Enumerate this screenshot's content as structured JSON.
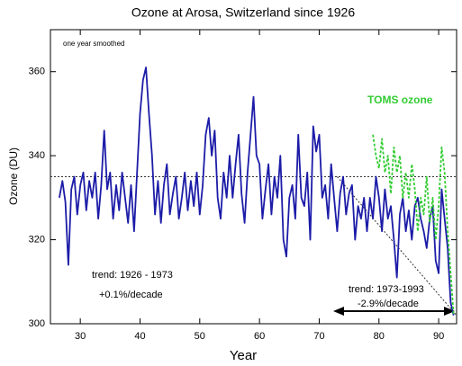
{
  "chart_data": {
    "type": "line",
    "title": "Ozone at Arosa, Switzerland since 1926",
    "x_label": "Year",
    "y_label": "Ozone (DU)",
    "annotations": [
      "one year smoothed",
      "trend: 1926 - 1973",
      "+0.1%/decade",
      "trend: 1973-1993",
      "-2.9%/decade"
    ],
    "xlim": [
      25,
      93
    ],
    "xticks": [
      30,
      40,
      50,
      60,
      70,
      80,
      90
    ],
    "ylim": [
      300,
      370
    ],
    "yticks": [
      300,
      320,
      340,
      360
    ],
    "series": [
      {
        "color": "#1c1ca8",
        "x": [
          26.5,
          27,
          27.5,
          28,
          28.5,
          29,
          29.5,
          30,
          30.5,
          31,
          31.5,
          32,
          32.5,
          33,
          33.5,
          34,
          34.5,
          35,
          35.5,
          36,
          36.5,
          37,
          37.5,
          38,
          38.5,
          39,
          39.5,
          40,
          40.5,
          41,
          41.5,
          42,
          42.5,
          43,
          43.5,
          44,
          44.5,
          45,
          45.5,
          46,
          46.5,
          47,
          47.5,
          48,
          48.5,
          49,
          49.5,
          50,
          50.5,
          51,
          51.5,
          52,
          52.5,
          53,
          53.5,
          54,
          54.5,
          55,
          55.5,
          56,
          56.5,
          57,
          57.5,
          58,
          58.5,
          59,
          59.5,
          60,
          60.5,
          61,
          61.5,
          62,
          62.5,
          63,
          63.5,
          64,
          64.5,
          65,
          65.5,
          66,
          66.5,
          67,
          67.5,
          68,
          68.5,
          69,
          69.5,
          70,
          70.5,
          71,
          71.5,
          72,
          72.5,
          73,
          73.5,
          74,
          74.5,
          75,
          75.5,
          76,
          76.5,
          77,
          77.5,
          78,
          78.5,
          79,
          79.5,
          80,
          80.5,
          81,
          81.5,
          82,
          82.5,
          83,
          83.5,
          84,
          84.5,
          85,
          85.5,
          86,
          86.5,
          87,
          87.5,
          88,
          88.5,
          89,
          89.5,
          90,
          90.5,
          91,
          91.5,
          92,
          92.5
        ],
        "values": [
          330,
          334,
          329,
          314,
          332,
          335,
          326,
          333,
          336,
          327,
          334,
          330,
          336,
          325,
          333,
          346,
          332,
          336,
          325,
          333,
          327,
          336,
          330,
          324,
          333,
          322,
          336,
          350,
          358,
          361,
          350,
          340,
          326,
          334,
          324,
          333,
          338,
          326,
          331,
          335,
          325,
          330,
          336,
          327,
          334,
          328,
          336,
          326,
          333,
          345,
          349,
          340,
          346,
          330,
          325,
          336,
          330,
          340,
          330,
          338,
          345,
          331,
          324,
          336,
          345,
          354,
          340,
          338,
          325,
          332,
          338,
          326,
          335,
          330,
          340,
          320,
          316,
          330,
          333,
          325,
          345,
          330,
          328,
          336,
          320,
          347,
          341,
          345,
          330,
          333,
          325,
          338,
          330,
          322,
          331,
          335,
          326,
          331,
          333,
          320,
          328,
          325,
          330,
          322,
          330,
          325,
          335,
          330,
          322,
          332,
          325,
          328,
          320,
          311,
          326,
          330,
          322,
          327,
          320,
          328,
          330,
          325,
          322,
          318,
          325,
          328,
          315,
          312,
          332,
          325,
          318,
          305,
          302
        ]
      },
      {
        "name": "TOMS ozone",
        "color": "#33cc33",
        "x": [
          79,
          79.5,
          80,
          80.5,
          81,
          81.5,
          82,
          82.5,
          83,
          83.5,
          84,
          84.5,
          85,
          85.5,
          86,
          86.5,
          87,
          87.5,
          88,
          88.5,
          89,
          89.5,
          90,
          90.5,
          91,
          91.5,
          92,
          92.5
        ],
        "values": [
          345,
          340,
          337,
          344,
          336,
          340,
          331,
          342,
          336,
          340,
          330,
          336,
          330,
          338,
          332,
          322,
          330,
          326,
          335,
          324,
          330,
          320,
          328,
          342,
          336,
          322,
          312,
          302
        ]
      }
    ],
    "trend_lines": [
      {
        "x": [
          25,
          93
        ],
        "values": [
          335,
          335
        ]
      },
      {
        "x": [
          73,
          93
        ],
        "values": [
          335,
          302
        ]
      }
    ]
  }
}
